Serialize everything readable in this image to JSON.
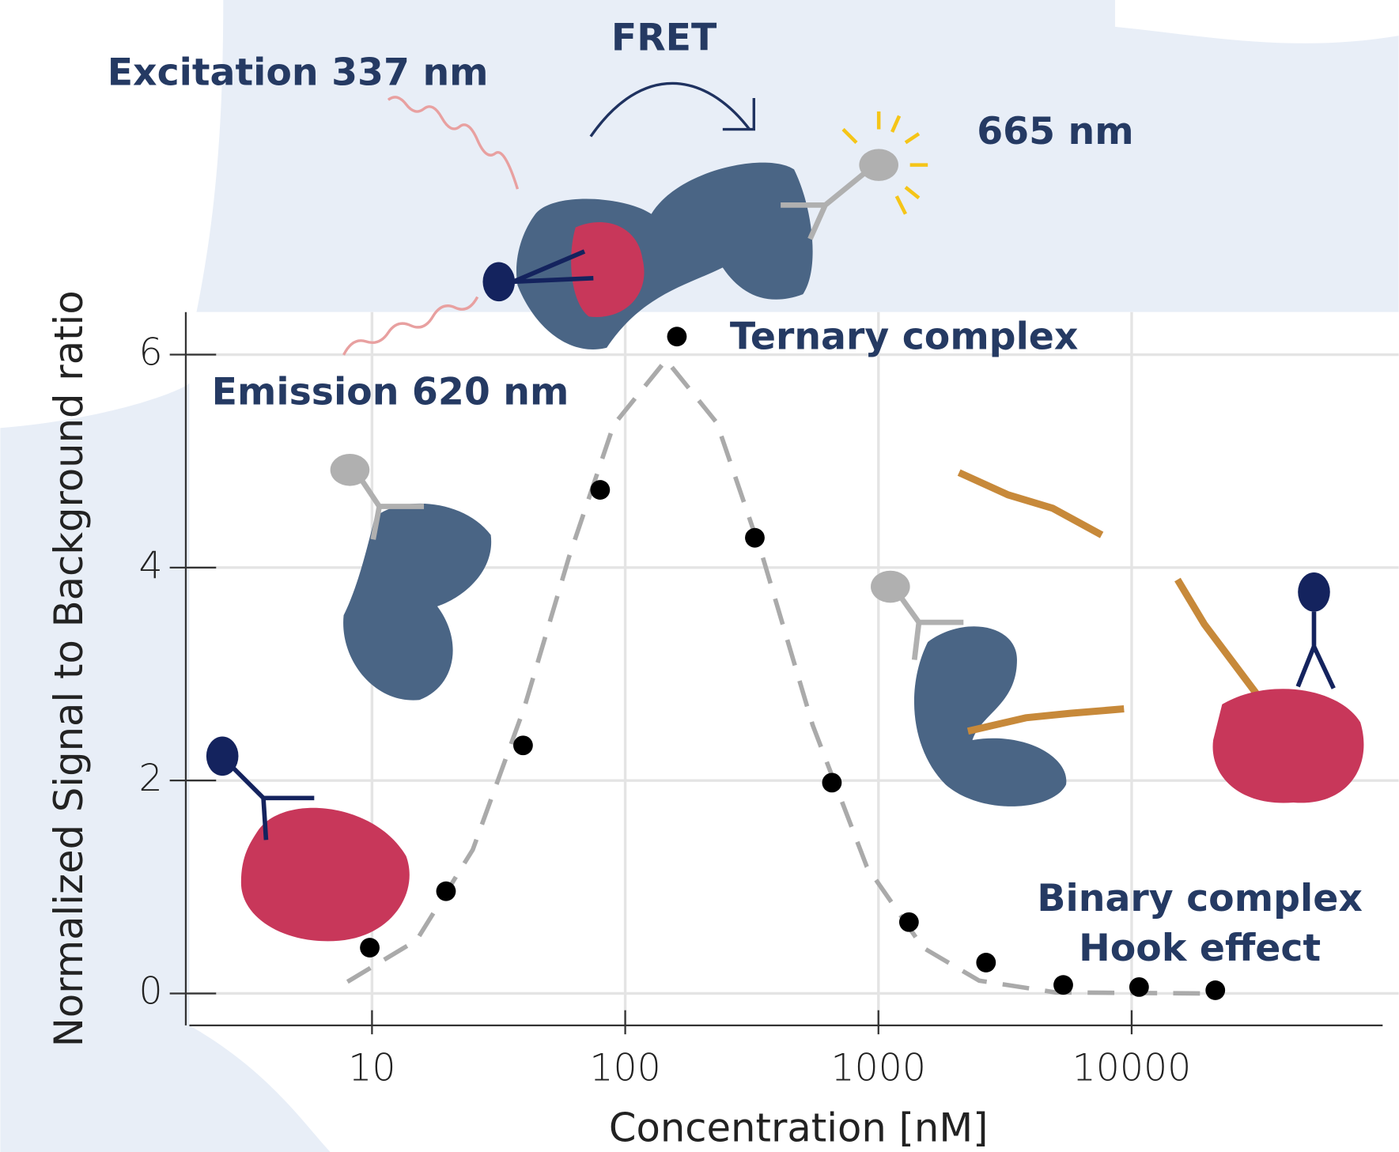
{
  "chart_data": {
    "type": "scatter",
    "xlabel": "Concentration [nM]",
    "ylabel": "Normalized Signal to Background ratio",
    "x": [
      9.8,
      19.6,
      39.5,
      79.6,
      160,
      325,
      655,
      1320,
      2660,
      5370,
      10700,
      21400
    ],
    "values": [
      0.43,
      0.96,
      2.33,
      4.73,
      6.17,
      4.28,
      1.98,
      0.67,
      0.29,
      0.08,
      0.06,
      0.03
    ],
    "color": "#000000",
    "fit": {
      "x": [
        8,
        15,
        25,
        40,
        60,
        90,
        145,
        230,
        350,
        550,
        900,
        1500,
        2500,
        5000,
        20000
      ],
      "values": [
        0.11,
        0.5,
        1.35,
        2.69,
        4.1,
        5.34,
        5.95,
        5.36,
        4.09,
        2.52,
        1.19,
        0.43,
        0.12,
        0.01,
        0
      ],
      "color": "#aaaaaa"
    },
    "xscale": "log",
    "xlim": [
      1.9,
      98000
    ],
    "ylim": [
      -0.3,
      6.4
    ],
    "xticks": [
      10,
      100,
      1000,
      10000
    ],
    "yticks": [
      0,
      2,
      4,
      6
    ],
    "grid": true,
    "annotations": {
      "excitation": "Excitation 337 nm",
      "fret": "FRET",
      "acceptor": "665 nm",
      "emission": "Emission 620 nm",
      "ternary": "Ternary complex",
      "binary": "Binary complex",
      "hook": "Hook effect"
    }
  }
}
